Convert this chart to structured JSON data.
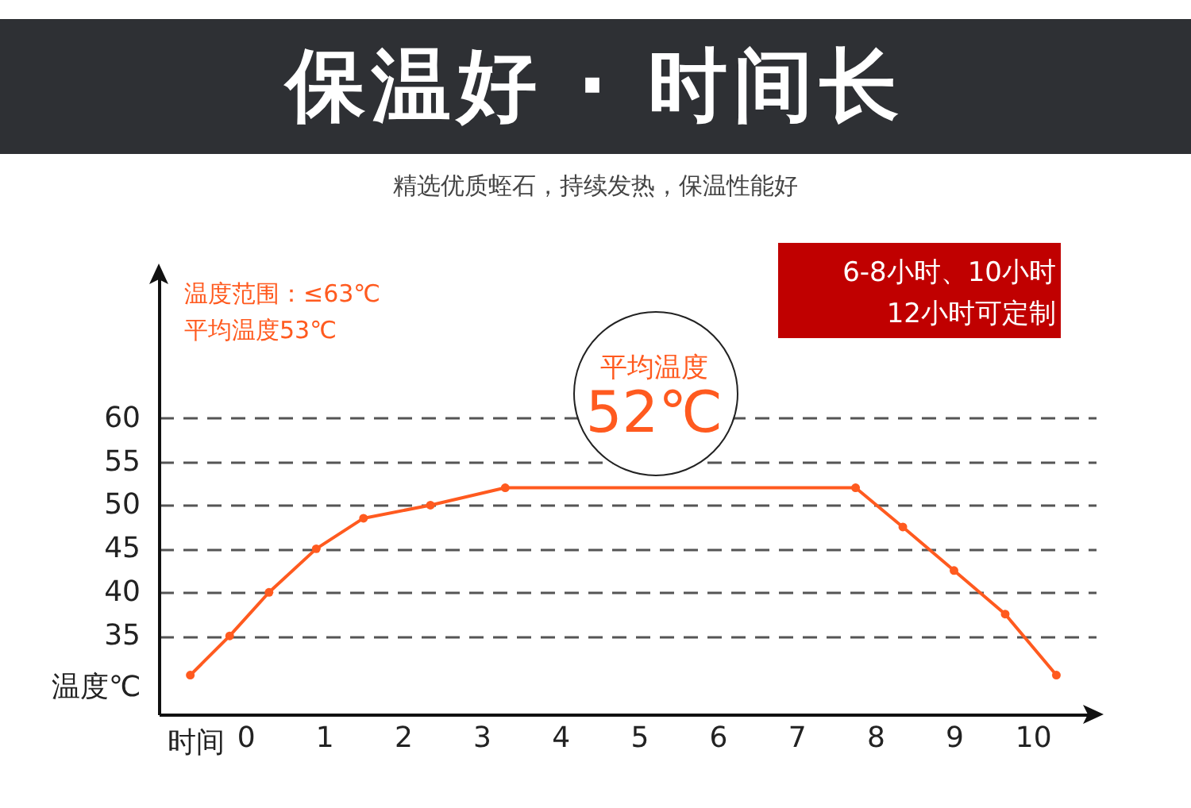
{
  "chart_data": {
    "type": "line",
    "title": "保温好 · 时间长",
    "subtitle": "精选优质蛭石，持续发热，保温性能好",
    "xlabel": "时间",
    "ylabel": "温度℃",
    "x": [
      -0.7,
      -0.2,
      0.3,
      0.9,
      1.5,
      2.35,
      3.3,
      7.75,
      8.35,
      9.0,
      9.65,
      10.3
    ],
    "series": [
      {
        "color": "#ff5a1f",
        "values": [
          30.5,
          35,
          40,
          45,
          48.5,
          50,
          52,
          52,
          47.5,
          42.5,
          37.5,
          30.5
        ]
      }
    ],
    "xlim": [
      -1.1,
      10.8
    ],
    "xticks": [
      0,
      1,
      2,
      3,
      4,
      5,
      6,
      7,
      8,
      9,
      10
    ],
    "ylim": [
      26,
      77
    ],
    "yticks": [
      35,
      40,
      45,
      50,
      55,
      60
    ],
    "grid": "y",
    "marker": "circle",
    "line_style": "solid",
    "annotations": [
      "温度范围：≤63℃",
      "平均温度53℃",
      "6-8小时、10小时",
      "12小时可定制",
      "平均温度",
      "52℃"
    ]
  }
}
